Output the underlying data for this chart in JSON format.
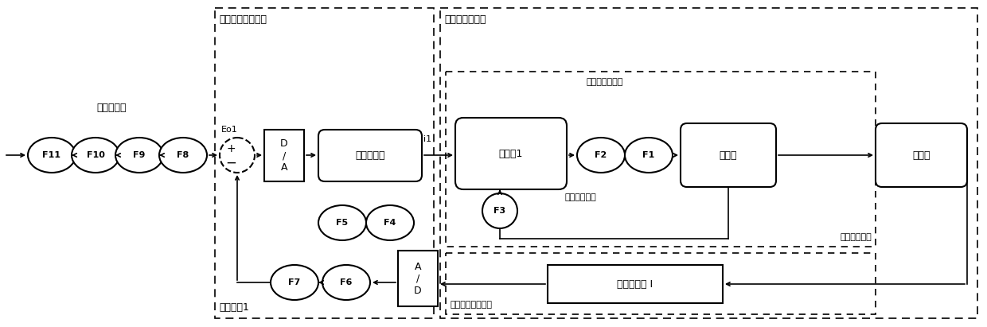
{
  "bg_color": "#ffffff",
  "fig_width": 12.4,
  "fig_height": 4.11,
  "dpi": 100,
  "labels": {
    "command_power": "指令、供电",
    "triple_servo_controller": "三余度伺服控制器",
    "triple_servo_mechanism": "三余度伺服机构",
    "triple_servo_valve": "三余度伺服阀",
    "triple_displacement_sensor": "三余度位移传感器",
    "sub_controller": "子控制全1",
    "Eo1": "Eo1",
    "i1": "i1",
    "servo_amp": "伺服放大器",
    "pre_stage": "前置级1",
    "slide_valve": "滑阀副",
    "actuator": "作动器",
    "displacement_sensor": "位移传感器 I",
    "DA": "D\n/\nA",
    "AD": "A\n/\nD",
    "F1": "F1",
    "F2": "F2",
    "F3": "F3",
    "F4": "F4",
    "F5": "F5",
    "F6": "F6",
    "F7": "F7",
    "F8": "F8",
    "F9": "F9",
    "F10": "F10",
    "F11": "F11",
    "pre_stage_flow": "前置级控制流量",
    "feedback_force": "反馈杆力反馈",
    "plus": "+",
    "minus": "−"
  }
}
